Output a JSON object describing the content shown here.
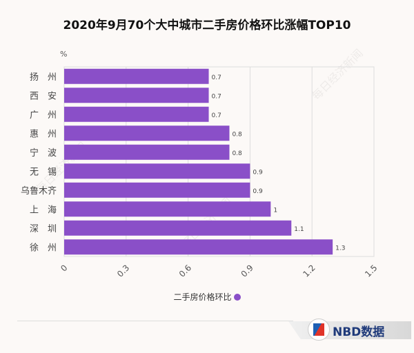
{
  "chart_data": {
    "type": "bar",
    "orientation": "horizontal",
    "title": "2020年9月70个大中城市二手房价格环比涨幅TOP10",
    "unit_label": "%",
    "categories": [
      "扬　州",
      "西　安",
      "广　州",
      "惠　州",
      "宁　波",
      "无　锡",
      "乌鲁木齐",
      "上　海",
      "深　圳",
      "徐　州"
    ],
    "series": [
      {
        "name": "二手房价格环比",
        "values": [
          0.7,
          0.7,
          0.7,
          0.8,
          0.8,
          0.9,
          0.9,
          1,
          1.1,
          1.3
        ],
        "color": "#8a4fc8"
      }
    ],
    "xlim": [
      0,
      1.5
    ],
    "xticks": [
      "0",
      "0.3",
      "0.6",
      "0.9",
      "1.2",
      "1.5"
    ],
    "grid": true,
    "legend": "bottom-center"
  },
  "branding": {
    "logo_text": "NBD数据",
    "watermark": "每日经济新闻"
  }
}
